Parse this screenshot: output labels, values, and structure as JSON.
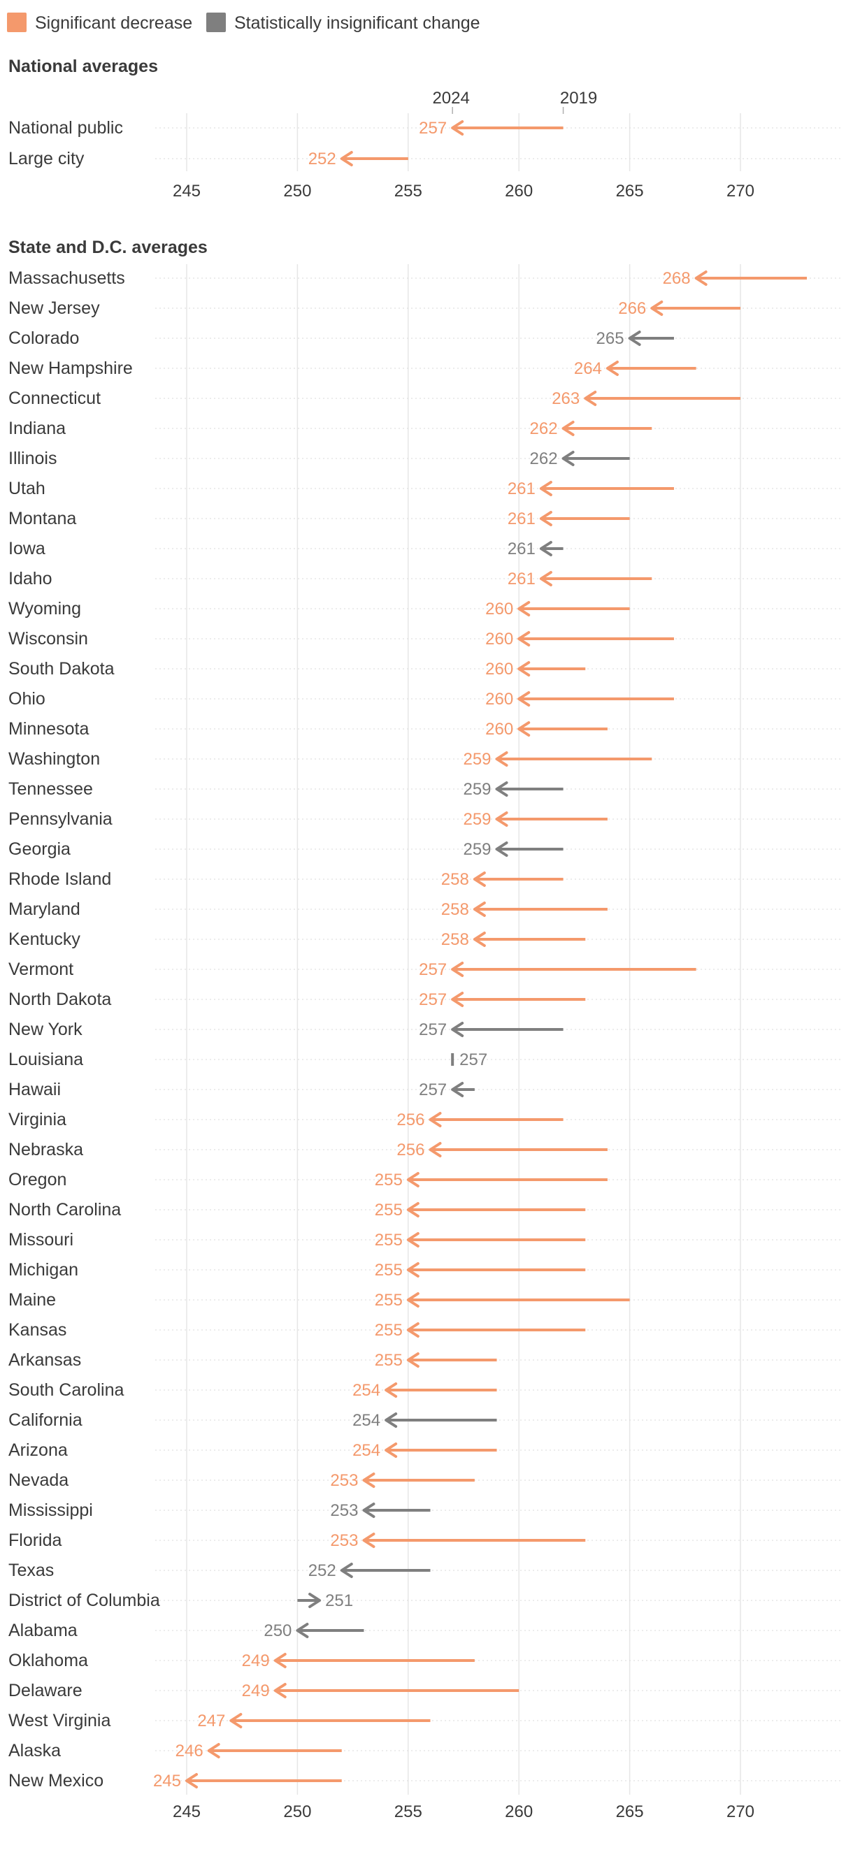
{
  "legend": [
    {
      "label": "Significant decrease",
      "color": "#f4996c"
    },
    {
      "label": "Statistically insignificant change",
      "color": "#7f7f7f"
    }
  ],
  "colors": {
    "significant": "#f4996c",
    "insignificant": "#7f7f7f",
    "grid": "#e6e6e6",
    "text": "#3a3a3a"
  },
  "chart_data": {
    "type": "arrow-dot-plot",
    "x_range": [
      244,
      274
    ],
    "ticks": [
      245,
      250,
      255,
      260,
      265,
      270
    ],
    "year_labels": {
      "end": "2024",
      "start": "2019"
    },
    "sections": [
      {
        "title": "National averages",
        "rows": [
          {
            "name": "National public",
            "start": 262,
            "end": 257,
            "significant": true,
            "label": "257"
          },
          {
            "name": "Large city",
            "start": 255,
            "end": 252,
            "significant": true,
            "label": "252"
          }
        ]
      },
      {
        "title": "State and D.C. averages",
        "rows": [
          {
            "name": "Massachusetts",
            "start": 273,
            "end": 268,
            "significant": true,
            "label": "268"
          },
          {
            "name": "New Jersey",
            "start": 270,
            "end": 266,
            "significant": true,
            "label": "266"
          },
          {
            "name": "Colorado",
            "start": 267,
            "end": 265,
            "significant": false,
            "label": "265"
          },
          {
            "name": "New Hampshire",
            "start": 268,
            "end": 264,
            "significant": true,
            "label": "264"
          },
          {
            "name": "Connecticut",
            "start": 270,
            "end": 263,
            "significant": true,
            "label": "263"
          },
          {
            "name": "Indiana",
            "start": 266,
            "end": 262,
            "significant": true,
            "label": "262"
          },
          {
            "name": "Illinois",
            "start": 265,
            "end": 262,
            "significant": false,
            "label": "262"
          },
          {
            "name": "Utah",
            "start": 267,
            "end": 261,
            "significant": true,
            "label": "261"
          },
          {
            "name": "Montana",
            "start": 265,
            "end": 261,
            "significant": true,
            "label": "261"
          },
          {
            "name": "Iowa",
            "start": 262,
            "end": 261,
            "significant": false,
            "label": "261"
          },
          {
            "name": "Idaho",
            "start": 266,
            "end": 261,
            "significant": true,
            "label": "261"
          },
          {
            "name": "Wyoming",
            "start": 265,
            "end": 260,
            "significant": true,
            "label": "260"
          },
          {
            "name": "Wisconsin",
            "start": 267,
            "end": 260,
            "significant": true,
            "label": "260"
          },
          {
            "name": "South Dakota",
            "start": 263,
            "end": 260,
            "significant": true,
            "label": "260"
          },
          {
            "name": "Ohio",
            "start": 267,
            "end": 260,
            "significant": true,
            "label": "260"
          },
          {
            "name": "Minnesota",
            "start": 264,
            "end": 260,
            "significant": true,
            "label": "260"
          },
          {
            "name": "Washington",
            "start": 266,
            "end": 259,
            "significant": true,
            "label": "259"
          },
          {
            "name": "Tennessee",
            "start": 262,
            "end": 259,
            "significant": false,
            "label": "259"
          },
          {
            "name": "Pennsylvania",
            "start": 264,
            "end": 259,
            "significant": true,
            "label": "259"
          },
          {
            "name": "Georgia",
            "start": 262,
            "end": 259,
            "significant": false,
            "label": "259"
          },
          {
            "name": "Rhode Island",
            "start": 262,
            "end": 258,
            "significant": true,
            "label": "258"
          },
          {
            "name": "Maryland",
            "start": 264,
            "end": 258,
            "significant": true,
            "label": "258"
          },
          {
            "name": "Kentucky",
            "start": 263,
            "end": 258,
            "significant": true,
            "label": "258"
          },
          {
            "name": "Vermont",
            "start": 268,
            "end": 257,
            "significant": true,
            "label": "257"
          },
          {
            "name": "North Dakota",
            "start": 263,
            "end": 257,
            "significant": true,
            "label": "257"
          },
          {
            "name": "New York",
            "start": 262,
            "end": 257,
            "significant": false,
            "label": "257"
          },
          {
            "name": "Louisiana",
            "start": 257,
            "end": 257,
            "significant": false,
            "label": "257"
          },
          {
            "name": "Hawaii",
            "start": 258,
            "end": 257,
            "significant": false,
            "label": "257"
          },
          {
            "name": "Virginia",
            "start": 262,
            "end": 256,
            "significant": true,
            "label": "256"
          },
          {
            "name": "Nebraska",
            "start": 264,
            "end": 256,
            "significant": true,
            "label": "256"
          },
          {
            "name": "Oregon",
            "start": 264,
            "end": 255,
            "significant": true,
            "label": "255"
          },
          {
            "name": "North Carolina",
            "start": 263,
            "end": 255,
            "significant": true,
            "label": "255"
          },
          {
            "name": "Missouri",
            "start": 263,
            "end": 255,
            "significant": true,
            "label": "255"
          },
          {
            "name": "Michigan",
            "start": 263,
            "end": 255,
            "significant": true,
            "label": "255"
          },
          {
            "name": "Maine",
            "start": 265,
            "end": 255,
            "significant": true,
            "label": "255"
          },
          {
            "name": "Kansas",
            "start": 263,
            "end": 255,
            "significant": true,
            "label": "255"
          },
          {
            "name": "Arkansas",
            "start": 259,
            "end": 255,
            "significant": true,
            "label": "255"
          },
          {
            "name": "South Carolina",
            "start": 259,
            "end": 254,
            "significant": true,
            "label": "254"
          },
          {
            "name": "California",
            "start": 259,
            "end": 254,
            "significant": false,
            "label": "254"
          },
          {
            "name": "Arizona",
            "start": 259,
            "end": 254,
            "significant": true,
            "label": "254"
          },
          {
            "name": "Nevada",
            "start": 258,
            "end": 253,
            "significant": true,
            "label": "253"
          },
          {
            "name": "Mississippi",
            "start": 256,
            "end": 253,
            "significant": false,
            "label": "253"
          },
          {
            "name": "Florida",
            "start": 263,
            "end": 253,
            "significant": true,
            "label": "253"
          },
          {
            "name": "Texas",
            "start": 256,
            "end": 252,
            "significant": false,
            "label": "252"
          },
          {
            "name": "District of Columbia",
            "start": 250,
            "end": 251,
            "significant": false,
            "label": "251"
          },
          {
            "name": "Alabama",
            "start": 253,
            "end": 250,
            "significant": false,
            "label": "250"
          },
          {
            "name": "Oklahoma",
            "start": 258,
            "end": 249,
            "significant": true,
            "label": "249"
          },
          {
            "name": "Delaware",
            "start": 260,
            "end": 249,
            "significant": true,
            "label": "249"
          },
          {
            "name": "West Virginia",
            "start": 256,
            "end": 247,
            "significant": true,
            "label": "247"
          },
          {
            "name": "Alaska",
            "start": 252,
            "end": 246,
            "significant": true,
            "label": "246"
          },
          {
            "name": "New Mexico",
            "start": 252,
            "end": 245,
            "significant": true,
            "label": "245"
          }
        ]
      }
    ]
  }
}
